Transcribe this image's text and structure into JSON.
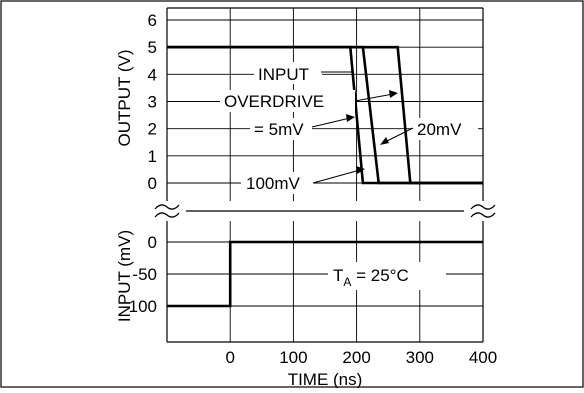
{
  "chart_data": [
    {
      "type": "line",
      "panel": "top",
      "ylabel": "OUTPUT (V)",
      "x_range": [
        -100,
        400
      ],
      "ylim": [
        0,
        6
      ],
      "y_ticks": [
        "0",
        "1",
        "2",
        "3",
        "4",
        "5",
        "6"
      ],
      "grid": true,
      "axis_break_marks": true,
      "series": [
        {
          "name": "100mV",
          "x": [
            -100,
            190,
            210,
            400
          ],
          "y": [
            5,
            5,
            0,
            0
          ]
        },
        {
          "name": "20mV",
          "x": [
            -100,
            210,
            235,
            400
          ],
          "y": [
            5,
            5,
            0,
            0
          ]
        },
        {
          "name": "5mV",
          "x": [
            -100,
            265,
            285,
            400
          ],
          "y": [
            5,
            5,
            0,
            0
          ]
        }
      ],
      "annotations": {
        "input": "INPUT",
        "overdrive": "OVERDRIVE",
        "eq5mv": "= 5mV",
        "lbl20": "20mV",
        "lbl100": "100mV"
      }
    },
    {
      "type": "line",
      "panel": "bottom",
      "ylabel": "INPUT (mV)",
      "xlabel": "TIME (ns)",
      "x_range": [
        -100,
        400
      ],
      "x_ticks": [
        "0",
        "100",
        "200",
        "300",
        "400"
      ],
      "ylim": [
        -130,
        10
      ],
      "y_ticks": [
        "0",
        "-50",
        "-100"
      ],
      "grid": true,
      "series": [
        {
          "name": "input",
          "x": [
            -100,
            0,
            0,
            400
          ],
          "y": [
            -100,
            -100,
            0,
            0
          ]
        }
      ],
      "annotations": {
        "ta_T": "T",
        "ta_sub": "A",
        "ta_rest": " = 25°C"
      }
    }
  ]
}
